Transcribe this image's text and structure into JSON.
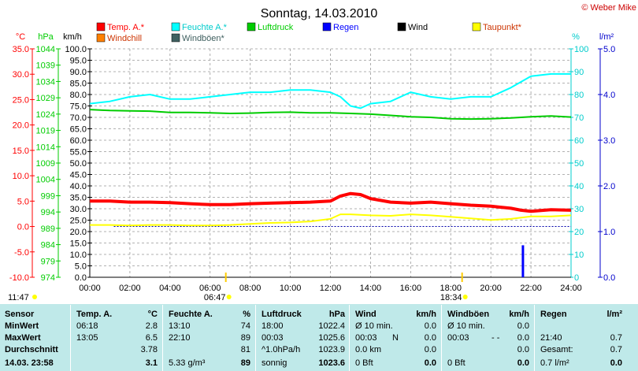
{
  "chart_data": {
    "type": "line",
    "title": "Sonntag, 14.03.2010",
    "copyright": "© Weber Mike",
    "x_range": [
      "00:00",
      "24:00"
    ],
    "x_ticks": [
      "00:00",
      "02:00",
      "04:00",
      "06:00",
      "08:00",
      "10:00",
      "12:00",
      "14:00",
      "16:00",
      "18:00",
      "20:00",
      "22:00",
      "24:00"
    ],
    "axes": {
      "temp": {
        "unit": "°C",
        "range": [
          -10,
          35
        ],
        "ticks": [
          "35.0",
          "30.0",
          "25.0",
          "20.0",
          "15.0",
          "10.0",
          "5.0",
          "0.0",
          "-5.0",
          "-10.0"
        ],
        "color": "#ff0000"
      },
      "pressure": {
        "unit": "hPa",
        "range": [
          974,
          1044
        ],
        "ticks": [
          "1044",
          "1039",
          "1034",
          "1029",
          "1024",
          "1019",
          "1014",
          "1009",
          "1004",
          "999",
          "994",
          "989",
          "984",
          "979",
          "974"
        ],
        "color": "#00cc00"
      },
      "wind": {
        "unit": "km/h",
        "range": [
          0,
          100
        ],
        "ticks": [
          "100.0",
          "95.0",
          "90.0",
          "85.0",
          "80.0",
          "75.0",
          "70.0",
          "65.0",
          "60.0",
          "55.0",
          "50.0",
          "45.0",
          "40.0",
          "35.0",
          "30.0",
          "25.0",
          "20.0",
          "15.0",
          "10.0",
          "5.0",
          "0.0"
        ],
        "color": "#000000"
      },
      "humidity": {
        "unit": "%",
        "range": [
          0,
          100
        ],
        "ticks": [
          "100",
          "90",
          "80",
          "70",
          "60",
          "50",
          "40",
          "30",
          "20",
          "10",
          "0"
        ],
        "color": "#00cccc"
      },
      "rain": {
        "unit": "l/m²",
        "range": [
          0,
          5
        ],
        "ticks": [
          "5.0",
          "4.0",
          "3.0",
          "2.0",
          "1.0",
          "0.0"
        ],
        "color": "#0000cc"
      }
    },
    "legend": [
      {
        "name": "Temp. A.*",
        "color": "#ff0000"
      },
      {
        "name": "Feuchte A.*",
        "color": "#00ffff"
      },
      {
        "name": "Luftdruck",
        "color": "#00cc00"
      },
      {
        "name": "Regen",
        "color": "#0000ff"
      },
      {
        "name": "Wind",
        "color": "#000000"
      },
      {
        "name": "Taupunkt*",
        "color": "#ffff00"
      },
      {
        "name": "Windchill",
        "color": "#ff8000"
      },
      {
        "name": "Windböen*",
        "color": "#406060"
      }
    ],
    "series": [
      {
        "name": "Temp. A.*",
        "axis": "temp",
        "color": "#ff0000",
        "x": [
          0,
          1,
          2,
          3,
          4,
          5,
          6,
          7,
          8,
          9,
          10,
          11,
          12,
          12.5,
          13,
          13.5,
          14,
          15,
          16,
          17,
          18,
          19,
          20,
          21,
          21.5,
          22,
          23,
          24
        ],
        "y": [
          5.0,
          5.0,
          4.8,
          4.8,
          4.7,
          4.5,
          4.3,
          4.3,
          4.5,
          4.6,
          4.7,
          4.8,
          5.0,
          6.0,
          6.5,
          6.3,
          5.5,
          4.8,
          4.6,
          4.8,
          4.5,
          4.2,
          4.0,
          3.6,
          3.2,
          3.0,
          3.3,
          3.2
        ]
      },
      {
        "name": "Feuchte A.*",
        "axis": "humidity",
        "color": "#00ffff",
        "x": [
          0,
          1,
          2,
          3,
          4,
          5,
          6,
          7,
          8,
          9,
          10,
          11,
          12,
          12.5,
          13,
          13.5,
          14,
          15,
          16,
          17,
          18,
          19,
          20,
          21,
          22,
          23,
          24
        ],
        "y": [
          76,
          77,
          79,
          80,
          78,
          78,
          79,
          80,
          81,
          81,
          82,
          82,
          81,
          79,
          75,
          74,
          76,
          77,
          81,
          79,
          78,
          79,
          79,
          83,
          88,
          89,
          89
        ]
      },
      {
        "name": "Luftdruck",
        "axis": "pressure",
        "color": "#00cc00",
        "x": [
          0,
          1,
          2,
          3,
          4,
          5,
          6,
          7,
          8,
          9,
          10,
          11,
          12,
          13,
          14,
          15,
          16,
          17,
          18,
          19,
          20,
          21,
          22,
          23,
          24
        ],
        "y": [
          1025.4,
          1025.1,
          1025.0,
          1024.9,
          1024.5,
          1024.5,
          1024.4,
          1024.2,
          1024.3,
          1024.5,
          1024.6,
          1024.4,
          1024.4,
          1024.2,
          1024.0,
          1023.6,
          1023.2,
          1023.0,
          1022.6,
          1022.5,
          1022.6,
          1022.8,
          1023.2,
          1023.4,
          1023.1
        ]
      },
      {
        "name": "Taupunkt*",
        "axis": "temp",
        "color": "#ffff00",
        "x": [
          0,
          1,
          2,
          3,
          4,
          5,
          6,
          7,
          8,
          9,
          10,
          11,
          12,
          12.5,
          13,
          14,
          15,
          16,
          17,
          18,
          19,
          20,
          21,
          22,
          23,
          24
        ],
        "y": [
          0.3,
          0.3,
          0.2,
          0.3,
          0.3,
          0.2,
          0.2,
          0.3,
          0.5,
          0.7,
          0.8,
          1.0,
          1.5,
          2.4,
          2.4,
          2.2,
          2.1,
          2.4,
          2.2,
          1.9,
          1.6,
          1.3,
          1.5,
          2.0,
          2.0,
          2.2
        ]
      },
      {
        "name": "Regen",
        "axis": "rain",
        "color": "#0000ff",
        "x": [
          21.6
        ],
        "y": [
          0.7
        ]
      }
    ],
    "markers": {
      "sunrise": "06:47",
      "sunset": "18:34"
    },
    "corner_time": "11:47"
  },
  "summary": {
    "headers": {
      "sensor": "Sensor",
      "temp": "Temp. A.",
      "temp_unit": "°C",
      "hum": "Feuchte A.",
      "hum_unit": "%",
      "press": "Luftdruck",
      "press_unit": "hPa",
      "wind": "Wind",
      "wind_unit": "km/h",
      "gust": "Windböen",
      "gust_unit": "km/h",
      "rain": "Regen",
      "rain_unit": "l/m²"
    },
    "rows": [
      {
        "label": "MinWert",
        "temp_time": "06:18",
        "temp_val": "2.8",
        "hum_time": "13:10",
        "hum_val": "74",
        "press_time": "18:00",
        "press_val": "1022.4",
        "wind_desc": "Ø 10 min.",
        "wind_val": "0.0",
        "gust_desc": "Ø 10 min.",
        "gust_val": "0.0",
        "rain_desc": "",
        "rain_val": ""
      },
      {
        "label": "MaxWert",
        "temp_time": "13:05",
        "temp_val": "6.5",
        "hum_time": "22:10",
        "hum_val": "89",
        "press_time": "00:03",
        "press_val": "1025.6",
        "wind_desc": "00:03",
        "wind_extra": "N",
        "wind_val": "0.0",
        "gust_desc": "00:03",
        "gust_extra": "- -",
        "gust_val": "0.0",
        "rain_desc": "21:40",
        "rain_val": "0.7"
      },
      {
        "label": "Durchschnitt",
        "temp_time": "",
        "temp_val": "3.78",
        "hum_time": "",
        "hum_val": "81",
        "press_time": "^1.0hPa/h",
        "press_val": "1023.9",
        "wind_desc": "0.0 km",
        "wind_val": "0.0",
        "gust_desc": "",
        "gust_val": "0.0",
        "rain_desc": "Gesamt:",
        "rain_val": "0.7"
      },
      {
        "label": "14.03. 23:58",
        "temp_time": "",
        "temp_val": "3.1",
        "hum_time": "5.33 g/m³",
        "hum_val": "89",
        "press_time": "sonnig",
        "press_val": "1023.6",
        "wind_desc": "0 Bft",
        "wind_val": "0.0",
        "gust_desc": "0 Bft",
        "gust_val": "0.0",
        "rain_desc": "0.7 l/m²",
        "rain_val": "0.0"
      }
    ]
  }
}
